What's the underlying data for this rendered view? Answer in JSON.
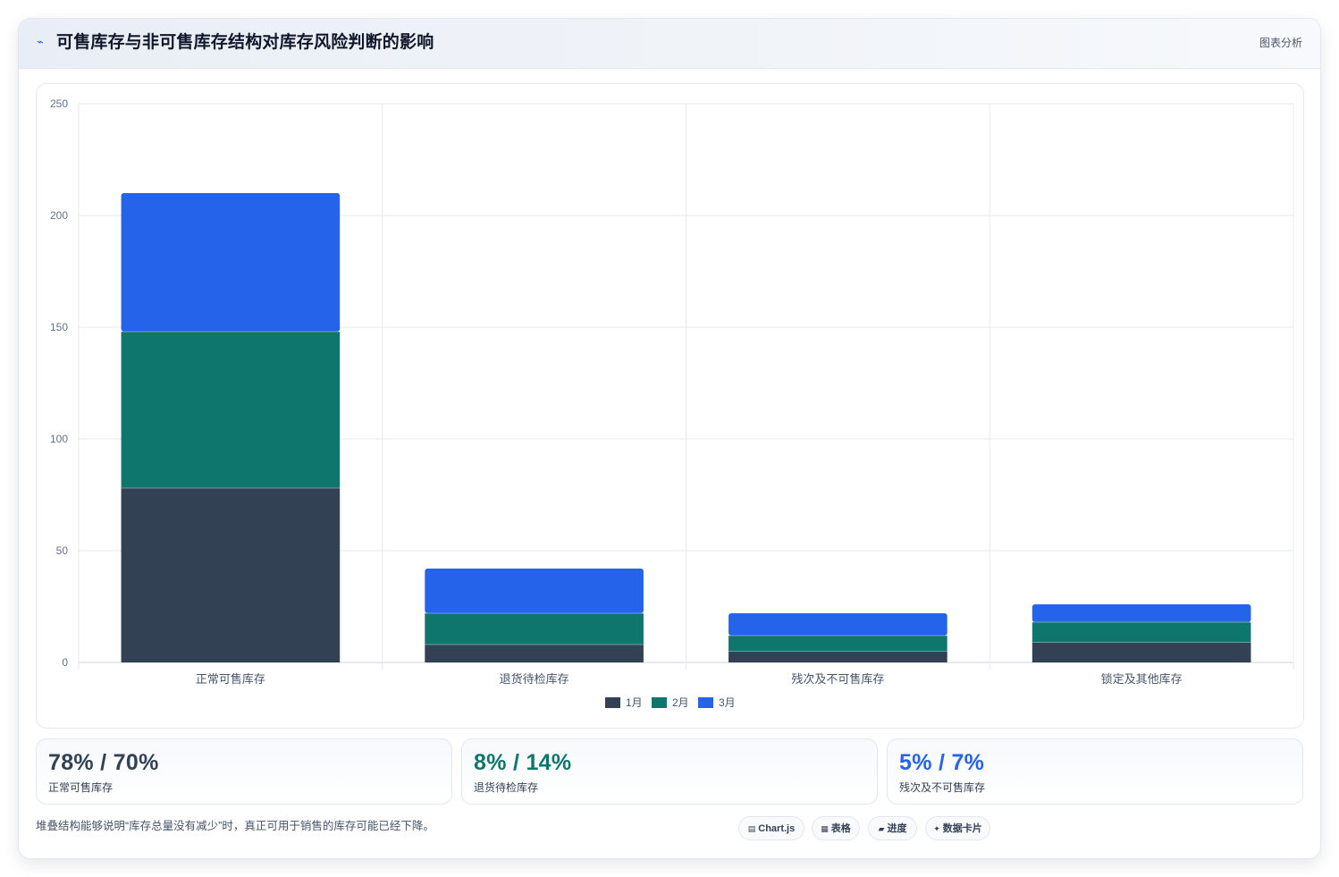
{
  "header": {
    "title": "可售库存与非可售库存结构对库存风险判断的影响",
    "right_label": "图表分析",
    "icon": "trend-arrow-icon",
    "accent_color": "#2563eb"
  },
  "chart_data": {
    "type": "bar",
    "stacked": true,
    "categories": [
      "正常可售库存",
      "退货待检库存",
      "残次及不可售库存",
      "锁定及其他库存"
    ],
    "series": [
      {
        "name": "1月",
        "color": "#334155",
        "values": [
          78,
          8,
          5,
          9
        ]
      },
      {
        "name": "2月",
        "color": "#0f766e",
        "values": [
          70,
          14,
          7,
          9
        ]
      },
      {
        "name": "3月",
        "color": "#2563eb",
        "values": [
          62,
          20,
          10,
          8
        ]
      }
    ],
    "ylim": [
      0,
      250
    ],
    "yticks": [
      0,
      50,
      100,
      150,
      200,
      250
    ],
    "grid": true,
    "legend_position": "bottom"
  },
  "stats": [
    {
      "value": "78% / 70%",
      "label": "正常可售库存",
      "color": "#334155"
    },
    {
      "value": "8% / 14%",
      "label": "退货待检库存",
      "color": "#0f766e"
    },
    {
      "value": "5% / 7%",
      "label": "残次及不可售库存",
      "color": "#2563eb"
    }
  ],
  "footer": {
    "note": "堆叠结构能够说明“库存总量没有减少”时，真正可用于销售的库存可能已经下降。",
    "tags": [
      {
        "label": "Chart.js",
        "icon": "chart-icon"
      },
      {
        "label": "表格",
        "icon": "table-icon"
      },
      {
        "label": "进度",
        "icon": "progress-icon"
      },
      {
        "label": "数据卡片",
        "icon": "sparkle-icon"
      }
    ]
  }
}
